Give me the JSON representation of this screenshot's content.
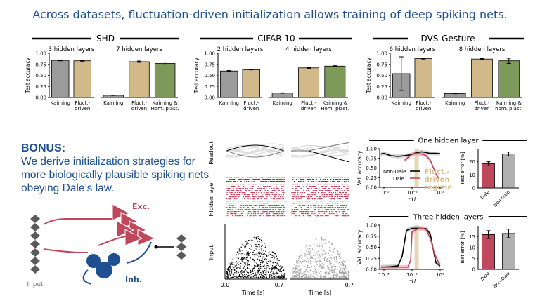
{
  "title": "Across datasets, fluctuation-driven initialization allows training of deep spiking nets.",
  "colors": {
    "title": "#1d4f91",
    "kaiming": "#9b9b9b",
    "fluct": "#d2b98a",
    "kaiming_hom": "#7d9a5a",
    "dale": "#c0485c",
    "nondale": "#b0b0b0",
    "inh": "#1d4f91",
    "band": "#e6d6b8",
    "spike_blue": "#1d4f91",
    "spike_red": "#c0485c"
  },
  "chart_data": [
    {
      "type": "bar",
      "group": "SHD",
      "subtitle": "3 hidden layers",
      "ylabel": "Test accuracy",
      "ylim": [
        0,
        1.0
      ],
      "yticks": [
        "0.00",
        "0.25",
        "0.50",
        "0.75",
        "1.00"
      ],
      "categories": [
        "Kaiming",
        "Fluct.-\ndriven"
      ],
      "values": [
        0.84,
        0.83
      ],
      "errors": [
        0.01,
        0.01
      ],
      "colors": [
        "kaiming",
        "fluct"
      ]
    },
    {
      "type": "bar",
      "group": "SHD",
      "subtitle": "7 hidden layers",
      "ylim": [
        0,
        1.0
      ],
      "categories": [
        "Kaiming",
        "Fluct.-\ndriven",
        "Kaiming &\nHom. plast."
      ],
      "values": [
        0.05,
        0.81,
        0.77
      ],
      "errors": [
        0.005,
        0.015,
        0.03
      ],
      "colors": [
        "kaiming",
        "fluct",
        "kaiming_hom"
      ]
    },
    {
      "type": "bar",
      "group": "CIFAR-10",
      "subtitle": "2 hidden layers",
      "ylabel": "Test accuracy",
      "ylim": [
        0,
        1.0
      ],
      "yticks": [
        "0.00",
        "0.25",
        "0.50",
        "0.75",
        "1.00"
      ],
      "categories": [
        "Kaiming",
        "Fluct.-\ndriven"
      ],
      "values": [
        0.6,
        0.63
      ],
      "errors": [
        0.01,
        0.005
      ],
      "colors": [
        "kaiming",
        "fluct"
      ]
    },
    {
      "type": "bar",
      "group": "CIFAR-10",
      "subtitle": "4 hidden layers",
      "ylim": [
        0,
        1.0
      ],
      "categories": [
        "Kaiming",
        "Fluct.-\ndriven",
        "Kaiming &\nHom. plast."
      ],
      "values": [
        0.1,
        0.67,
        0.71
      ],
      "errors": [
        0.005,
        0.01,
        0.01
      ],
      "colors": [
        "kaiming",
        "fluct",
        "kaiming_hom"
      ]
    },
    {
      "type": "bar",
      "group": "DVS-Gesture",
      "subtitle": "6 hidden layers",
      "ylabel": "Test accuracy",
      "ylim": [
        0,
        1.0
      ],
      "yticks": [
        "0.00",
        "0.25",
        "0.50",
        "0.75",
        "1.00"
      ],
      "categories": [
        "Kaiming",
        "Fluct.-\ndriven"
      ],
      "values": [
        0.54,
        0.88
      ],
      "errors": [
        0.38,
        0.01
      ],
      "colors": [
        "kaiming",
        "fluct"
      ]
    },
    {
      "type": "bar",
      "group": "DVS-Gesture",
      "subtitle": "8 hidden layers",
      "ylim": [
        0,
        1.0
      ],
      "categories": [
        "Kaiming",
        "Fluct.-\ndriven",
        "Kaiming &\nhom. plast."
      ],
      "values": [
        0.09,
        0.87,
        0.83
      ],
      "errors": [
        0.005,
        0.01,
        0.06
      ],
      "colors": [
        "kaiming",
        "fluct",
        "kaiming_hom"
      ]
    },
    {
      "type": "line",
      "subtitle": "One hidden layer",
      "ylabel": "Val. accuracy",
      "xlabel": "σU",
      "xscale": "log",
      "xlim": [
        0.0005,
        20
      ],
      "ylim": [
        0,
        1.0
      ],
      "xticks": [
        {
          "v": 0.001,
          "t": "10⁻³"
        },
        {
          "v": 0.1,
          "t": "10⁻¹"
        },
        {
          "v": 10,
          "t": "10¹"
        }
      ],
      "yticks": [
        "0.00",
        "0.25",
        "0.50",
        "0.75",
        "1.00"
      ],
      "band": [
        0.15,
        0.3
      ],
      "band_label": [
        "Fluct.-",
        "driven",
        "regime"
      ],
      "series": [
        {
          "name": "Non-Dale",
          "color": "#000000",
          "x": [
            0.0006,
            0.001,
            0.003,
            0.01,
            0.03,
            0.1,
            0.2,
            0.5,
            1,
            2,
            5,
            10
          ],
          "y": [
            0.86,
            0.88,
            0.82,
            0.8,
            0.82,
            0.85,
            0.9,
            0.92,
            0.9,
            0.88,
            0.88,
            0.87
          ]
        },
        {
          "name": "Dale",
          "color": "#c0485c",
          "x": [
            0.03,
            0.1,
            0.2,
            0.5,
            1,
            2,
            5,
            8
          ],
          "y": [
            0.7,
            0.86,
            0.88,
            0.86,
            0.82,
            0.7,
            0.35,
            0.22
          ]
        }
      ]
    },
    {
      "type": "bar",
      "subtitle": "",
      "ylabel": "Test error [%]",
      "ylim": [
        0,
        30
      ],
      "yticks": [
        "0",
        "10",
        "20"
      ],
      "categories": [
        "Dale",
        "Non-Dale"
      ],
      "values": [
        18.5,
        26
      ],
      "errors": [
        1.5,
        1.5
      ],
      "colors": [
        "dale",
        "nondale"
      ]
    },
    {
      "type": "line",
      "subtitle": "Three hidden layers",
      "ylabel": "Val. accuracy",
      "xlabel": "σU",
      "xscale": "log",
      "xlim": [
        0.0005,
        20
      ],
      "ylim": [
        0,
        1.0
      ],
      "xticks": [
        {
          "v": 0.001,
          "t": "10⁻³"
        },
        {
          "v": 0.1,
          "t": "10⁻¹"
        },
        {
          "v": 10,
          "t": "10¹"
        }
      ],
      "yticks": [
        "0.00",
        "0.25",
        "0.50",
        "0.75",
        "1.00"
      ],
      "band": [
        0.15,
        0.3
      ],
      "series": [
        {
          "name": "Non-Dale",
          "color": "#000000",
          "x": [
            0.0006,
            0.001,
            0.003,
            0.01,
            0.02,
            0.04,
            0.1,
            0.3,
            1,
            2,
            3,
            5,
            10
          ],
          "y": [
            0.05,
            0.05,
            0.06,
            0.08,
            0.3,
            0.88,
            0.93,
            0.93,
            0.92,
            0.8,
            0.5,
            0.15,
            0.08
          ]
        },
        {
          "name": "Dale",
          "color": "#c0485c",
          "x": [
            0.0006,
            0.01,
            0.05,
            0.08,
            0.1,
            0.3,
            0.6,
            1,
            2,
            4,
            8,
            10
          ],
          "y": [
            0.05,
            0.05,
            0.05,
            0.2,
            0.85,
            0.93,
            0.93,
            0.9,
            0.7,
            0.35,
            0.15,
            0.12
          ]
        }
      ]
    },
    {
      "type": "bar",
      "subtitle": "",
      "ylabel": "Test error [%]",
      "ylim": [
        0,
        20
      ],
      "yticks": [
        "0",
        "5",
        "10",
        "15"
      ],
      "categories": [
        "Dale",
        "Non-Dale"
      ],
      "values": [
        16,
        16.5
      ],
      "errors": [
        1.8,
        2.0
      ],
      "colors": [
        "dale",
        "nondale"
      ]
    }
  ],
  "panel_labels": {
    "shd": "SHD",
    "cifar": "CIFAR-10",
    "dvs": "DVS-Gesture"
  },
  "bonus": {
    "head": "BONUS:",
    "body": "We derive initialization strategies for more biologically plausible spiking nets obeying Dale’s law."
  },
  "diagram": {
    "input_label": "Input",
    "exc_label": "Exc.",
    "inh_label": "Inh."
  },
  "raster": {
    "row_labels": [
      "Readout",
      "Hidden layer",
      "Input"
    ],
    "xlabel": "Time [s]",
    "xticks": [
      "0.0",
      "0.7"
    ]
  },
  "legend": {
    "nondale": "Non-Dale",
    "dale": "Dale"
  }
}
